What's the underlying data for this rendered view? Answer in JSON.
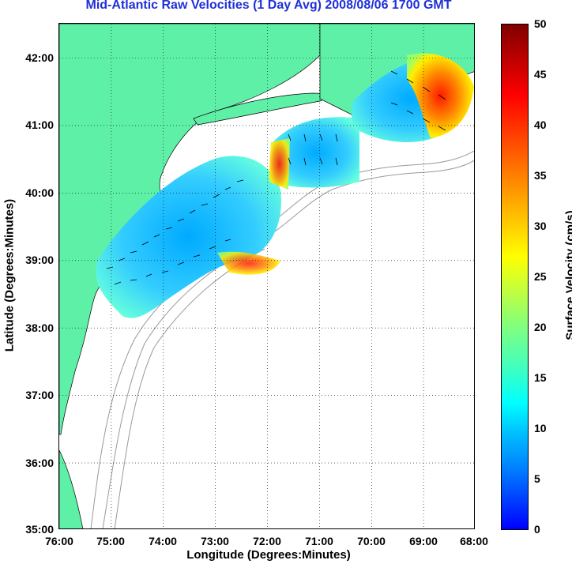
{
  "title": "Mid-Atlantic Raw Velocities (1 Day Avg) 2008/08/06 1700 GMT",
  "axes": {
    "x_label": "Longitude (Degrees:Minutes)",
    "y_label": "Latitude (Degrees:Minutes)",
    "x_ticks": [
      "76:00",
      "75:00",
      "74:00",
      "73:00",
      "72:00",
      "71:00",
      "70:00",
      "69:00",
      "68:00"
    ],
    "y_ticks": [
      "42:00",
      "41:00",
      "40:00",
      "39:00",
      "38:00",
      "37:00",
      "36:00",
      "35:00"
    ],
    "x_range": [
      -76,
      -68
    ],
    "y_range": [
      35,
      42.5
    ],
    "grid": "dotted"
  },
  "colorbar": {
    "label": "Surface Velocity (cm/s)",
    "ticks": [
      "50",
      "45",
      "40",
      "35",
      "30",
      "25",
      "20",
      "15",
      "10",
      "5",
      "0"
    ],
    "range": [
      0,
      50
    ],
    "colormap": "jet"
  },
  "colors": {
    "land": "#5ff0a8",
    "title": "#1f2fd9",
    "bathymetry": "#9a9a9a"
  }
}
